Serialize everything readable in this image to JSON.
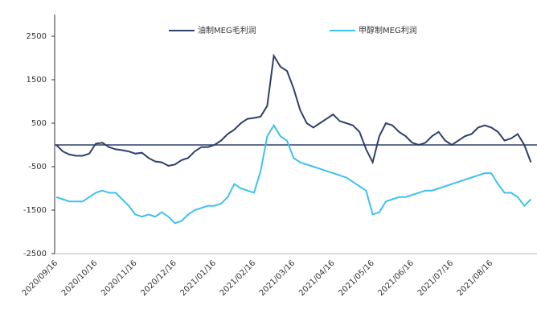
{
  "chart_data": {
    "type": "line",
    "categories": [
      "2020/09/16",
      null,
      null,
      null,
      null,
      null,
      "2020/10/16",
      null,
      null,
      null,
      null,
      null,
      "2020/11/16",
      null,
      null,
      null,
      null,
      null,
      "2020/12/16",
      null,
      null,
      null,
      null,
      null,
      "2021/01/16",
      null,
      null,
      null,
      null,
      null,
      "2021/02/16",
      null,
      null,
      null,
      null,
      null,
      "2021/03/16",
      null,
      null,
      null,
      null,
      null,
      "2021/04/16",
      null,
      null,
      null,
      null,
      null,
      "2021/05/16",
      null,
      null,
      null,
      null,
      null,
      "2021/06/16",
      null,
      null,
      null,
      null,
      null,
      "2021/07/16",
      null,
      null,
      null,
      null,
      null,
      "2021/08/16",
      null,
      null,
      null,
      null,
      null,
      null
    ],
    "series": [
      {
        "name": "油制MEG毛利润",
        "color": "#2f3f6b",
        "values": [
          0,
          -150,
          -220,
          -250,
          -250,
          -200,
          30,
          50,
          -50,
          -100,
          -120,
          -150,
          -200,
          -180,
          -300,
          -380,
          -400,
          -480,
          -450,
          -350,
          -300,
          -150,
          -50,
          -50,
          0,
          100,
          250,
          350,
          500,
          600,
          620,
          650,
          900,
          2050,
          1800,
          1700,
          1300,
          800,
          500,
          400,
          500,
          600,
          700,
          550,
          500,
          450,
          300,
          -100,
          -400,
          200,
          500,
          450,
          300,
          200,
          50,
          0,
          50,
          200,
          300,
          100,
          0,
          100,
          200,
          250,
          400,
          450,
          400,
          300,
          100,
          150,
          250,
          0,
          -400
        ]
      },
      {
        "name": "甲醇制MEG利润",
        "color": "#3ec1ec",
        "values": [
          -1200,
          -1250,
          -1300,
          -1300,
          -1300,
          -1200,
          -1100,
          -1050,
          -1100,
          -1100,
          -1250,
          -1400,
          -1600,
          -1650,
          -1600,
          -1650,
          -1550,
          -1650,
          -1800,
          -1750,
          -1600,
          -1500,
          -1450,
          -1400,
          -1400,
          -1350,
          -1200,
          -900,
          -1000,
          -1050,
          -1100,
          -600,
          200,
          450,
          200,
          100,
          -300,
          -400,
          -450,
          -500,
          -550,
          -600,
          -650,
          -700,
          -750,
          -850,
          -950,
          -1050,
          -1600,
          -1550,
          -1300,
          -1250,
          -1200,
          -1200,
          -1150,
          -1100,
          -1050,
          -1050,
          -1000,
          -950,
          -900,
          -850,
          -800,
          -750,
          -700,
          -650,
          -650,
          -900,
          -1100,
          -1100,
          -1200,
          -1400,
          -1250
        ]
      }
    ],
    "ylim": [
      -2500,
      3000
    ],
    "yticks": [
      -2500,
      -1500,
      -500,
      500,
      1500,
      2500
    ]
  }
}
